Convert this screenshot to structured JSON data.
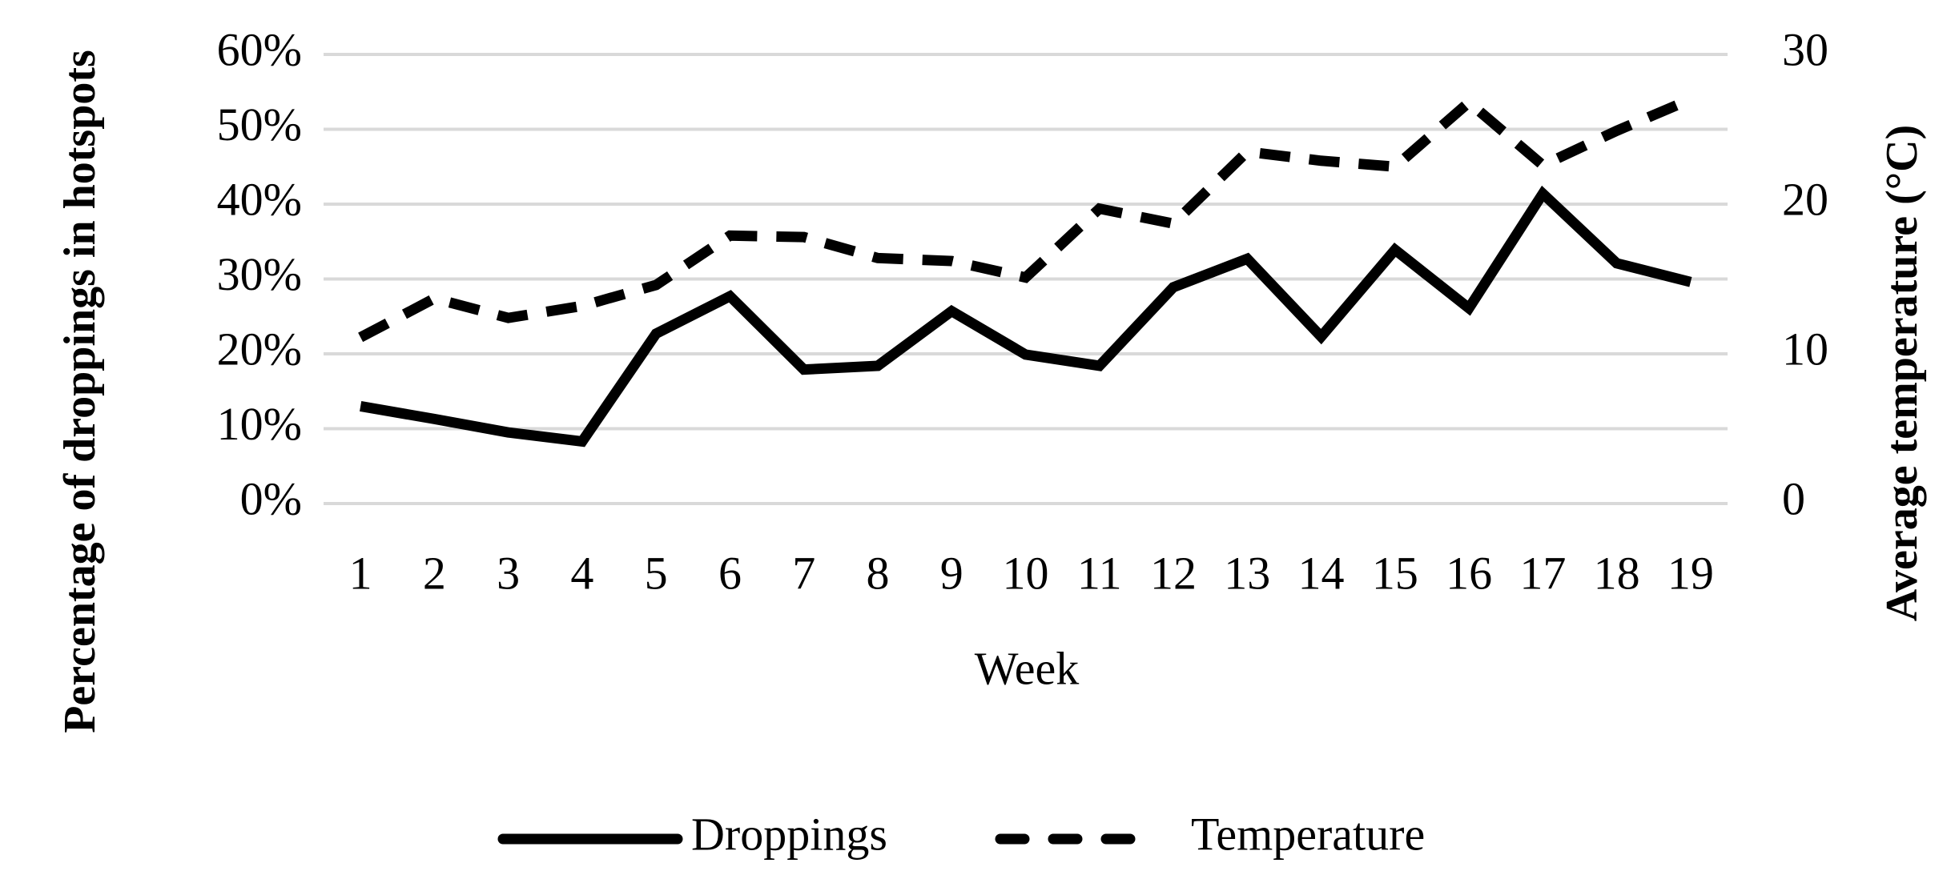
{
  "chart_data": {
    "type": "line",
    "x_label": "Week",
    "y_label": "Percentage of droppings in hotspots",
    "y2_label": "Average temperature (°C)",
    "categories": [
      1,
      2,
      3,
      4,
      5,
      6,
      7,
      8,
      9,
      10,
      11,
      12,
      13,
      14,
      15,
      16,
      17,
      18,
      19
    ],
    "series": [
      {
        "name": "Droppings",
        "color": "#000000",
        "style": "solid",
        "values": [
          13,
          11.3,
          9.5,
          8.3,
          22.7,
          27.7,
          17.9,
          18.4,
          25.7,
          19.9,
          18.4,
          28.9,
          32.7,
          22.3,
          33.9,
          26.1,
          41.4,
          32.1,
          29.6
        ]
      },
      {
        "name": "Temperature",
        "color": "#000000",
        "style": "dashed",
        "axis": "y2",
        "values": [
          11.1,
          13.7,
          12.4,
          13.2,
          14.6,
          17.9,
          17.8,
          16.4,
          16.2,
          15.1,
          19.7,
          18.7,
          23.5,
          22.9,
          22.5,
          26.8,
          22.6,
          24.9,
          27.0
        ]
      }
    ],
    "ylim": [
      0,
      60
    ],
    "yticks": [
      {
        "value": 0,
        "label": "0%"
      },
      {
        "value": 10,
        "label": "10%"
      },
      {
        "value": 20,
        "label": "20%"
      },
      {
        "value": 30,
        "label": "30%"
      },
      {
        "value": 40,
        "label": "40%"
      },
      {
        "value": 50,
        "label": "50%"
      },
      {
        "value": 60,
        "label": "60%"
      }
    ],
    "y2lim": [
      0,
      30
    ],
    "y2ticks": [
      0,
      10,
      20,
      30
    ],
    "grid": true,
    "legend": "bottom"
  }
}
